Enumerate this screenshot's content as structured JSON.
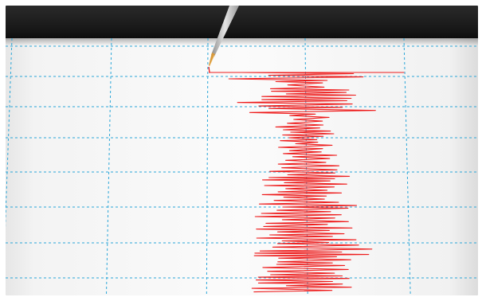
{
  "image": {
    "subject": "seismograph",
    "colors": {
      "drum_band": "#1c1c1c",
      "paper": "#f7f7f7",
      "paper_shadow": "#d9d9d9",
      "grid": "#2aa6d8",
      "trace": "#ee1c1c",
      "stylus": "#bdbdbd",
      "stylus_tip": "#d99a3a"
    },
    "elements": [
      "drum-band-icon",
      "chart-paper-icon",
      "dashed-grid-icon",
      "seismic-trace-icon",
      "stylus-pen-icon"
    ]
  }
}
